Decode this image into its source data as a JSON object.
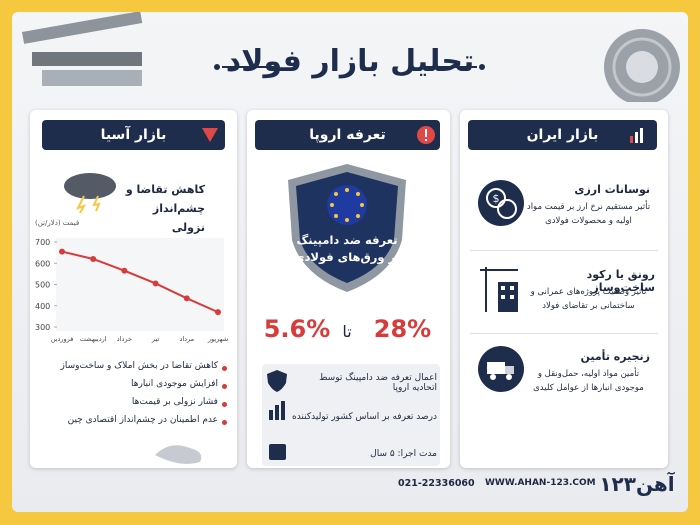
{
  "header": {
    "title": "تحلیل بازار فولاد"
  },
  "iran": {
    "title": "بازار ایران",
    "items": [
      {
        "title": "نوسانات ارزی",
        "text": "تأثیر مستقیم نرخ ارز بر قیمت مواد اولیه و محصولات فولادی"
      },
      {
        "title": "رونق یا رکود ساخت‌وساز",
        "text": "تأثیر وضعیت پروژه‌های عمرانی و ساختمانی بر تقاضای فولاد"
      },
      {
        "title": "زنجیره تأمین",
        "text": "تأمین مواد اولیه، حمل‌ونقل و موجودی انبارها از عوامل کلیدی"
      }
    ]
  },
  "europe": {
    "title": "تعرفه اروپا",
    "shield": "تعرفه ضد دامپینگ بر ورق‌های فولادی",
    "rate_low": "5.6%",
    "rate_separator": "تا",
    "rate_high": "28%",
    "items": [
      "اعمال تعرفه ضد دامپینگ توسط اتحادیه اروپا",
      "درصد تعرفه بر اساس کشور تولیدکننده",
      "مدت اجرا: ۵ سال"
    ]
  },
  "asia": {
    "title": "بازار آسیا",
    "subtitle": "کاهش تقاضا و چشم‌انداز نزولی",
    "chart_data": {
      "type": "line",
      "y_label": "قیمت (دلار/تن)",
      "categories": [
        "فروردین",
        "اردیبهشت",
        "خرداد",
        "تیر",
        "مرداد",
        "شهریور"
      ],
      "values": [
        655,
        620,
        565,
        505,
        435,
        370
      ],
      "color": "#d93a3a",
      "ylim": [
        300,
        700
      ],
      "yticks": [
        300,
        400,
        500,
        600,
        700
      ]
    },
    "bullets": [
      "کاهش تقاضا در بخش املاک و ساخت‌وساز",
      "افزایش موجودی انبارها",
      "فشار نزولی بر قیمت‌ها",
      "عدم اطمینان در چشم‌انداز اقتصادی چین"
    ]
  },
  "footer": {
    "phone": "021-22336060",
    "website": "WWW.AHAN-123.COM",
    "logo": "آهن۱۲۳"
  }
}
